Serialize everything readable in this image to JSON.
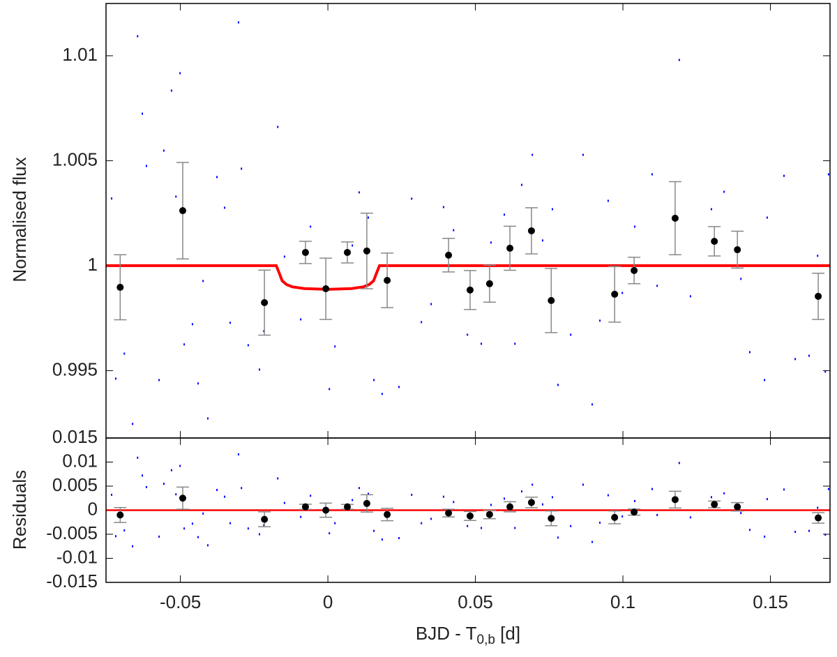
{
  "chart_data": [
    {
      "type": "scatter",
      "y_label": "Normalised flux",
      "xlim": [
        -0.0752,
        0.1702
      ],
      "ylim": [
        0.99179,
        1.01249
      ],
      "xticks": [
        -0.05,
        0,
        0.05,
        0.1,
        0.15
      ],
      "yticks": [
        0.995,
        1,
        1.005,
        1.01
      ],
      "raw": {
        "color": "#0000ff",
        "x": [
          -0.0733,
          -0.0719,
          -0.069,
          -0.0662,
          -0.0645,
          -0.0629,
          -0.0615,
          -0.0572,
          -0.0556,
          -0.053,
          -0.0515,
          -0.0501,
          -0.0487,
          -0.0459,
          -0.044,
          -0.0423,
          -0.0407,
          -0.0376,
          -0.035,
          -0.0331,
          -0.0303,
          -0.0293,
          -0.027,
          -0.0232,
          -0.0217,
          -0.017,
          -0.0147,
          -0.0092,
          -0.0059,
          0.0005,
          0.0024,
          0.0083,
          0.0106,
          0.0137,
          0.0156,
          0.0184,
          0.0241,
          0.0284,
          0.0317,
          0.035,
          0.0392,
          0.0426,
          0.0473,
          0.052,
          0.0553,
          0.0598,
          0.0634,
          0.0657,
          0.0693,
          0.0728,
          0.0761,
          0.078,
          0.0823,
          0.0865,
          0.0896,
          0.0922,
          0.095,
          0.0998,
          0.104,
          0.1099,
          0.1116,
          0.1191,
          0.1229,
          0.13,
          0.1343,
          0.14,
          0.143,
          0.148,
          0.1489,
          0.1546,
          0.1584,
          0.1631,
          0.166,
          0.1686,
          0.1697
        ],
        "values": [
          1.0032,
          0.99462,
          0.99581,
          0.99246,
          1.01093,
          1.00724,
          1.00475,
          0.99455,
          1.00548,
          1.00834,
          1.00329,
          1.00917,
          0.99625,
          0.99721,
          0.99439,
          0.99927,
          0.99272,
          1.00422,
          1.00276,
          0.99728,
          1.01159,
          1.00462,
          0.99621,
          0.99505,
          0.99688,
          1.00661,
          1.00043,
          0.99744,
          1.00186,
          0.99412,
          0.99615,
          1.00096,
          1.00349,
          1.00229,
          0.99455,
          0.99389,
          0.99422,
          1.00319,
          0.99731,
          0.99817,
          1.00279,
          1.00169,
          0.99671,
          0.99628,
          1.0011,
          1.00243,
          0.99628,
          1.00385,
          1.00528,
          1.0012,
          1.00269,
          0.99432,
          0.99671,
          1.00528,
          0.99339,
          0.99738,
          1.00309,
          0.9987,
          1.00186,
          1.00435,
          0.99904,
          1.0098,
          0.99854,
          1.00269,
          1.00352,
          0.99937,
          0.99588,
          0.99455,
          1.00229,
          1.00428,
          0.99555,
          0.99571,
          1.00047,
          0.99495,
          1.00435
        ]
      },
      "binned": {
        "color": "#000000",
        "error_color": "#888888",
        "x": [
          -0.0704,
          -0.0492,
          -0.0215,
          -0.0076,
          -0.0007,
          0.0066,
          0.0132,
          0.0201,
          0.0409,
          0.0482,
          0.0548,
          0.0617,
          0.069,
          0.0757,
          0.0972,
          0.1038,
          0.1177,
          0.131,
          0.1388,
          0.1662
        ],
        "values": [
          0.99897,
          1.00262,
          0.99824,
          1.00063,
          0.9989,
          1.00063,
          1.0007,
          0.9993,
          1.0005,
          0.99884,
          0.99914,
          1.00083,
          1.00166,
          0.99834,
          0.99864,
          0.99977,
          1.00226,
          1.00116,
          1.00076,
          0.99854
        ],
        "errors": [
          0.00155,
          0.0023,
          0.00155,
          0.00053,
          0.00146,
          0.0005,
          0.0018,
          0.0013,
          0.0008,
          0.00093,
          0.00088,
          0.00105,
          0.0011,
          0.00153,
          0.00133,
          0.00063,
          0.00174,
          0.0007,
          0.00088,
          0.0011
        ]
      },
      "model": {
        "color": "#ff0000",
        "x": [
          -0.0752,
          -0.0175,
          -0.0165,
          -0.0155,
          -0.014,
          -0.012,
          -0.008,
          0,
          0.008,
          0.012,
          0.014,
          0.0155,
          0.0165,
          0.0175,
          0.1702
        ],
        "values": [
          1,
          1,
          0.99965,
          0.99928,
          0.9991,
          0.99899,
          0.99891,
          0.99887,
          0.99891,
          0.99899,
          0.9991,
          0.99928,
          0.99965,
          1,
          1
        ]
      }
    },
    {
      "type": "scatter",
      "y_label": "Residuals",
      "x_label": {
        "text": "BJD - T",
        "subscript": "0,b",
        "suffix": " [d]"
      },
      "xlim": [
        -0.0752,
        0.1702
      ],
      "ylim": [
        -0.015,
        0.015
      ],
      "xticks": [
        -0.05,
        0,
        0.05,
        0.1,
        0.15
      ],
      "yticks": [
        -0.015,
        -0.01,
        -0.005,
        0,
        0.005,
        0.01,
        0.015
      ],
      "raw": {
        "color": "#0000ff",
        "x": [
          -0.0733,
          -0.0719,
          -0.069,
          -0.0662,
          -0.0645,
          -0.0629,
          -0.0615,
          -0.0572,
          -0.0556,
          -0.053,
          -0.0515,
          -0.0501,
          -0.0487,
          -0.0459,
          -0.044,
          -0.0423,
          -0.0407,
          -0.0376,
          -0.035,
          -0.0331,
          -0.0303,
          -0.0293,
          -0.027,
          -0.0232,
          -0.0217,
          -0.017,
          -0.0147,
          -0.0092,
          -0.0059,
          0.0005,
          0.0024,
          0.0083,
          0.0106,
          0.0137,
          0.0156,
          0.0184,
          0.0241,
          0.0284,
          0.0317,
          0.035,
          0.0392,
          0.0426,
          0.0473,
          0.052,
          0.0553,
          0.0598,
          0.0634,
          0.0657,
          0.0693,
          0.0728,
          0.0761,
          0.078,
          0.0823,
          0.0865,
          0.0896,
          0.0922,
          0.095,
          0.0998,
          0.104,
          0.1099,
          0.1116,
          0.1191,
          0.1229,
          0.13,
          0.1343,
          0.14,
          0.143,
          0.148,
          0.1489,
          0.1546,
          0.1584,
          0.1631,
          0.166,
          0.1686,
          0.1697
        ],
        "values": [
          0.0032,
          -0.0054,
          -0.0042,
          -0.0075,
          0.0109,
          0.0072,
          0.0048,
          -0.0055,
          0.0055,
          0.0083,
          0.0033,
          0.0092,
          -0.0038,
          -0.0028,
          -0.0056,
          -0.0007,
          -0.0073,
          0.0042,
          0.0028,
          -0.0027,
          0.0116,
          0.0046,
          -0.0038,
          -0.005,
          -0.0031,
          0.0066,
          0.0015,
          -0.0014,
          0.003,
          -0.0048,
          -0.0027,
          0.0021,
          0.0046,
          0.0034,
          -0.0043,
          -0.0061,
          -0.0058,
          0.0032,
          -0.0027,
          -0.0018,
          0.0028,
          0.0017,
          -0.0033,
          -0.0037,
          0.0011,
          0.0024,
          -0.0037,
          0.0039,
          0.0053,
          0.0012,
          0.0027,
          -0.0057,
          -0.0033,
          0.0053,
          -0.0066,
          -0.0026,
          0.0031,
          -0.0013,
          0.0019,
          0.0044,
          -0.001,
          0.0098,
          -0.0015,
          0.0027,
          0.0035,
          -0.0006,
          -0.0041,
          -0.0055,
          0.0023,
          0.0043,
          -0.0045,
          -0.0043,
          0.0005,
          -0.0051,
          0.0044
        ]
      },
      "binned": {
        "color": "#000000",
        "error_color": "#888888",
        "x": [
          -0.0704,
          -0.0492,
          -0.0215,
          -0.0076,
          -0.0007,
          0.0066,
          0.0132,
          0.0201,
          0.0409,
          0.0482,
          0.0548,
          0.0617,
          0.069,
          0.0757,
          0.0972,
          0.1038,
          0.1177,
          0.131,
          0.1388,
          0.1662
        ],
        "values": [
          -0.001,
          0.0025,
          -0.0019,
          0.0007,
          0,
          0.0007,
          0.0014,
          -0.0009,
          -0.0006,
          -0.0012,
          -0.0009,
          0.0007,
          0.0016,
          -0.0017,
          -0.0015,
          -0.0004,
          0.0022,
          0.0012,
          0.0007,
          -0.0016
        ],
        "errors": [
          0.00155,
          0.0023,
          0.00155,
          0.00053,
          0.00146,
          0.0005,
          0.0018,
          0.0013,
          0.0008,
          0.00093,
          0.00088,
          0.00105,
          0.0011,
          0.00153,
          0.00133,
          0.00063,
          0.00174,
          0.0007,
          0.00088,
          0.0011
        ]
      },
      "model": {
        "color": "#ff0000",
        "x": [
          -0.0752,
          0.1702
        ],
        "values": [
          0,
          0
        ]
      }
    }
  ]
}
